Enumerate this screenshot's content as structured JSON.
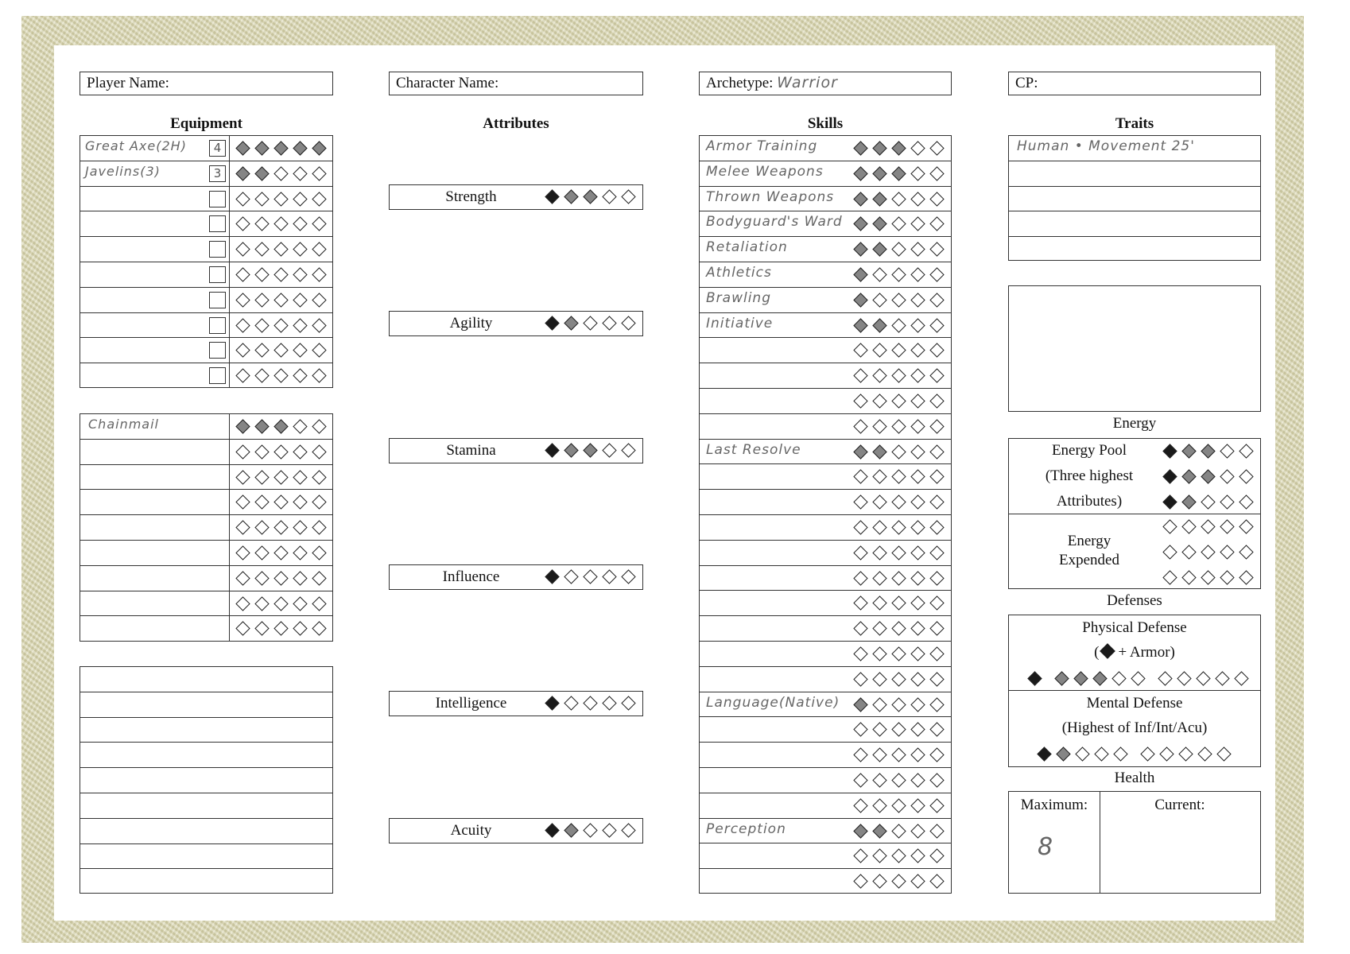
{
  "header": {
    "player_name_label": "Player Name:",
    "player_name_value": "",
    "character_name_label": "Character Name:",
    "character_name_value": "",
    "archetype_label": "Archetype:",
    "archetype_value": "Warrior",
    "cp_label": "CP:",
    "cp_value": ""
  },
  "equipment": {
    "title": "Equipment",
    "weapons": [
      {
        "name": "Great Axe(2H)",
        "box": "4",
        "pips": [
          1,
          1,
          1,
          1,
          1
        ]
      },
      {
        "name": "Javelins(3)",
        "box": "3",
        "pips": [
          1,
          1,
          0,
          0,
          0
        ]
      },
      {
        "name": "",
        "box": "",
        "pips": [
          0,
          0,
          0,
          0,
          0
        ]
      },
      {
        "name": "",
        "box": "",
        "pips": [
          0,
          0,
          0,
          0,
          0
        ]
      },
      {
        "name": "",
        "box": "",
        "pips": [
          0,
          0,
          0,
          0,
          0
        ]
      },
      {
        "name": "",
        "box": "",
        "pips": [
          0,
          0,
          0,
          0,
          0
        ]
      },
      {
        "name": "",
        "box": "",
        "pips": [
          0,
          0,
          0,
          0,
          0
        ]
      },
      {
        "name": "",
        "box": "",
        "pips": [
          0,
          0,
          0,
          0,
          0
        ]
      },
      {
        "name": "",
        "box": "",
        "pips": [
          0,
          0,
          0,
          0,
          0
        ]
      },
      {
        "name": "",
        "box": "",
        "pips": [
          0,
          0,
          0,
          0,
          0
        ]
      }
    ],
    "armor": [
      {
        "name": "Chainmail",
        "pips": [
          1,
          1,
          1,
          0,
          0
        ]
      },
      {
        "name": "",
        "pips": [
          0,
          0,
          0,
          0,
          0
        ]
      },
      {
        "name": "",
        "pips": [
          0,
          0,
          0,
          0,
          0
        ]
      },
      {
        "name": "",
        "pips": [
          0,
          0,
          0,
          0,
          0
        ]
      },
      {
        "name": "",
        "pips": [
          0,
          0,
          0,
          0,
          0
        ]
      },
      {
        "name": "",
        "pips": [
          0,
          0,
          0,
          0,
          0
        ]
      },
      {
        "name": "",
        "pips": [
          0,
          0,
          0,
          0,
          0
        ]
      },
      {
        "name": "",
        "pips": [
          0,
          0,
          0,
          0,
          0
        ]
      },
      {
        "name": "",
        "pips": [
          0,
          0,
          0,
          0,
          0
        ]
      }
    ],
    "notes": [
      "",
      "",
      "",
      "",
      "",
      "",
      "",
      "",
      ""
    ]
  },
  "attributes": {
    "title": "Attributes",
    "items": [
      {
        "name": "Strength",
        "pips": [
          2,
          1,
          1,
          0,
          0
        ]
      },
      {
        "name": "Agility",
        "pips": [
          2,
          1,
          0,
          0,
          0
        ]
      },
      {
        "name": "Stamina",
        "pips": [
          2,
          1,
          1,
          0,
          0
        ]
      },
      {
        "name": "Influence",
        "pips": [
          2,
          0,
          0,
          0,
          0
        ]
      },
      {
        "name": "Intelligence",
        "pips": [
          2,
          0,
          0,
          0,
          0
        ]
      },
      {
        "name": "Acuity",
        "pips": [
          2,
          1,
          0,
          0,
          0
        ]
      }
    ]
  },
  "skills": {
    "title": "Skills",
    "rows": [
      {
        "name": "Armor Training",
        "pips": [
          1,
          1,
          1,
          0,
          0
        ]
      },
      {
        "name": "Melee Weapons",
        "pips": [
          1,
          1,
          1,
          0,
          0
        ]
      },
      {
        "name": "Thrown Weapons",
        "pips": [
          1,
          1,
          0,
          0,
          0
        ]
      },
      {
        "name": "Bodyguard's Ward",
        "pips": [
          1,
          1,
          0,
          0,
          0
        ]
      },
      {
        "name": "Retaliation",
        "pips": [
          1,
          1,
          0,
          0,
          0
        ]
      },
      {
        "name": "Athletics",
        "pips": [
          1,
          0,
          0,
          0,
          0
        ]
      },
      {
        "name": "Brawling",
        "pips": [
          1,
          0,
          0,
          0,
          0
        ]
      },
      {
        "name": "Initiative",
        "pips": [
          1,
          1,
          0,
          0,
          0
        ]
      },
      {
        "name": "",
        "pips": [
          0,
          0,
          0,
          0,
          0
        ]
      },
      {
        "name": "",
        "pips": [
          0,
          0,
          0,
          0,
          0
        ]
      },
      {
        "name": "",
        "pips": [
          0,
          0,
          0,
          0,
          0
        ]
      },
      {
        "name": "",
        "pips": [
          0,
          0,
          0,
          0,
          0
        ]
      },
      {
        "name": "Last Resolve",
        "pips": [
          1,
          1,
          0,
          0,
          0
        ]
      },
      {
        "name": "",
        "pips": [
          0,
          0,
          0,
          0,
          0
        ]
      },
      {
        "name": "",
        "pips": [
          0,
          0,
          0,
          0,
          0
        ]
      },
      {
        "name": "",
        "pips": [
          0,
          0,
          0,
          0,
          0
        ]
      },
      {
        "name": "",
        "pips": [
          0,
          0,
          0,
          0,
          0
        ]
      },
      {
        "name": "",
        "pips": [
          0,
          0,
          0,
          0,
          0
        ]
      },
      {
        "name": "",
        "pips": [
          0,
          0,
          0,
          0,
          0
        ]
      },
      {
        "name": "",
        "pips": [
          0,
          0,
          0,
          0,
          0
        ]
      },
      {
        "name": "",
        "pips": [
          0,
          0,
          0,
          0,
          0
        ]
      },
      {
        "name": "",
        "pips": [
          0,
          0,
          0,
          0,
          0
        ]
      },
      {
        "name": "Language(Native)",
        "pips": [
          1,
          0,
          0,
          0,
          0
        ]
      },
      {
        "name": "",
        "pips": [
          0,
          0,
          0,
          0,
          0
        ]
      },
      {
        "name": "",
        "pips": [
          0,
          0,
          0,
          0,
          0
        ]
      },
      {
        "name": "",
        "pips": [
          0,
          0,
          0,
          0,
          0
        ]
      },
      {
        "name": "",
        "pips": [
          0,
          0,
          0,
          0,
          0
        ]
      },
      {
        "name": "Perception",
        "pips": [
          1,
          1,
          0,
          0,
          0
        ]
      },
      {
        "name": "",
        "pips": [
          0,
          0,
          0,
          0,
          0
        ]
      },
      {
        "name": "",
        "pips": [
          0,
          0,
          0,
          0,
          0
        ]
      }
    ]
  },
  "traits": {
    "title": "Traits",
    "rows": [
      "Human • Movement 25'",
      "",
      "",
      "",
      ""
    ],
    "notes": ""
  },
  "energy": {
    "title": "Energy",
    "pool_lines": [
      "Energy Pool",
      "(Three highest",
      "Attributes)"
    ],
    "pool_pips": [
      [
        2,
        1,
        1,
        0,
        0
      ],
      [
        2,
        1,
        1,
        0,
        0
      ],
      [
        2,
        1,
        0,
        0,
        0
      ]
    ],
    "expended_lines": [
      "Energy",
      "Expended"
    ],
    "expended_pips": [
      [
        0,
        0,
        0,
        0,
        0
      ],
      [
        0,
        0,
        0,
        0,
        0
      ],
      [
        0,
        0,
        0,
        0,
        0
      ]
    ]
  },
  "defenses": {
    "title": "Defenses",
    "physical_title": "Physical Defense",
    "physical_sub_open": "(",
    "physical_sub_rest": "+ Armor)",
    "physical_pips": [
      [
        2
      ],
      [
        1,
        1,
        1,
        0,
        0
      ],
      [
        0,
        0,
        0,
        0,
        0
      ]
    ],
    "mental_title": "Mental Defense",
    "mental_sub": "(Highest of Inf/Int/Acu)",
    "mental_pips": [
      [
        2,
        1,
        0,
        0,
        0
      ],
      [
        0,
        0,
        0,
        0,
        0
      ]
    ]
  },
  "health": {
    "title": "Health",
    "maximum_label": "Maximum:",
    "maximum_value": "8",
    "current_label": "Current:",
    "current_value": ""
  },
  "colors": {
    "filled_gray": "#858585",
    "filled_black": "#1a1a1a",
    "frame": "#d9d6b4"
  }
}
